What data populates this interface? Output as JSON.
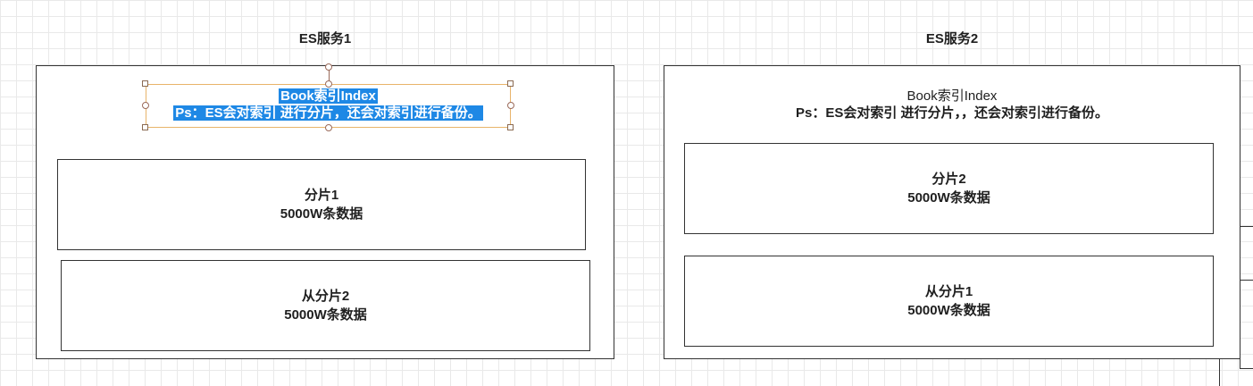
{
  "servers": [
    {
      "title": "ES服务1",
      "index_title": "Book索引Index",
      "index_note": "Ps：ES会对索引 进行分片，还会对索引进行备份。",
      "shards": [
        {
          "name": "分片1",
          "detail": "5000W条数据"
        },
        {
          "name": "从分片2",
          "detail": "5000W条数据"
        }
      ]
    },
    {
      "title": "ES服务2",
      "index_title": "Book索引Index",
      "index_note": "Ps：ES会对索引 进行分片，，还会对索引进行备份。",
      "shards": [
        {
          "name": "分片2",
          "detail": "5000W条数据"
        },
        {
          "name": "从分片1",
          "detail": "5000W条数据"
        }
      ]
    }
  ],
  "colors": {
    "selection": "#1e88e5",
    "selection_border": "#e8b46a",
    "stroke": "#333333",
    "grid": "#e9e9e9"
  }
}
